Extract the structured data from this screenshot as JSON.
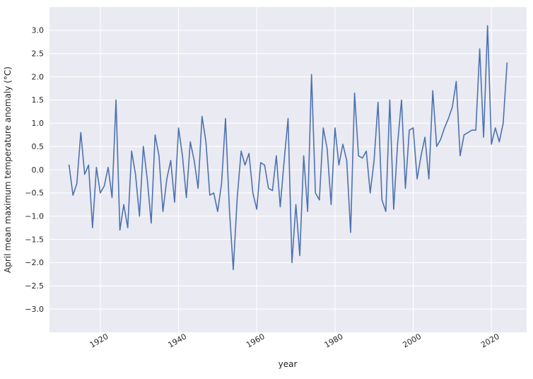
{
  "figure": {
    "background_color": "#ffffff",
    "plot_background_color": "#eaeaf2",
    "grid_color": "#ffffff",
    "line_color": "#4c72b0",
    "tick_label_color": "#262626"
  },
  "chart_data": {
    "type": "line",
    "title": "",
    "xlabel": "year",
    "ylabel": "April mean maximum temperature anomaly (°C)",
    "legend": false,
    "grid": true,
    "x_tick_rotation": 30,
    "xlim": [
      1907,
      2029
    ],
    "ylim": [
      -3.5,
      3.5
    ],
    "xticks": [
      1920,
      1940,
      1960,
      1980,
      2000,
      2020
    ],
    "yticks": [
      -3.0,
      -2.5,
      -2.0,
      -1.5,
      -1.0,
      -0.5,
      0.0,
      0.5,
      1.0,
      1.5,
      2.0,
      2.5,
      3.0
    ],
    "series_name": "April mean maximum temperature anomaly",
    "x": [
      1912,
      1913,
      1914,
      1915,
      1916,
      1917,
      1918,
      1919,
      1920,
      1921,
      1922,
      1923,
      1924,
      1925,
      1926,
      1927,
      1928,
      1929,
      1930,
      1931,
      1932,
      1933,
      1934,
      1935,
      1936,
      1937,
      1938,
      1939,
      1940,
      1941,
      1942,
      1943,
      1944,
      1945,
      1946,
      1947,
      1948,
      1949,
      1950,
      1951,
      1952,
      1953,
      1954,
      1955,
      1956,
      1957,
      1958,
      1959,
      1960,
      1961,
      1962,
      1963,
      1964,
      1965,
      1966,
      1967,
      1968,
      1969,
      1970,
      1971,
      1972,
      1973,
      1974,
      1975,
      1976,
      1977,
      1978,
      1979,
      1980,
      1981,
      1982,
      1983,
      1984,
      1985,
      1986,
      1987,
      1988,
      1989,
      1990,
      1991,
      1992,
      1993,
      1994,
      1995,
      1996,
      1997,
      1998,
      1999,
      2000,
      2001,
      2002,
      2003,
      2004,
      2005,
      2006,
      2007,
      2008,
      2009,
      2010,
      2011,
      2012,
      2013,
      2014,
      2015,
      2016,
      2017,
      2018,
      2019,
      2020,
      2021,
      2022,
      2023,
      2024
    ],
    "values": [
      0.1,
      -0.55,
      -0.3,
      0.8,
      -0.1,
      0.1,
      -1.25,
      0.05,
      -0.5,
      -0.35,
      0.05,
      -0.6,
      1.5,
      -1.3,
      -0.75,
      -1.25,
      0.4,
      -0.1,
      -1.0,
      0.5,
      -0.2,
      -1.15,
      0.75,
      0.3,
      -0.9,
      -0.2,
      0.2,
      -0.7,
      0.9,
      0.3,
      -0.6,
      0.6,
      0.2,
      -0.4,
      1.15,
      0.6,
      -0.55,
      -0.5,
      -0.9,
      -0.3,
      1.1,
      -0.85,
      -2.15,
      -0.6,
      0.4,
      0.1,
      0.35,
      -0.5,
      -0.85,
      0.15,
      0.1,
      -0.4,
      -0.45,
      0.3,
      -0.8,
      0.2,
      1.1,
      -2.0,
      -0.75,
      -1.85,
      0.3,
      -0.9,
      2.05,
      -0.5,
      -0.65,
      0.9,
      0.45,
      -0.75,
      0.9,
      0.1,
      0.55,
      0.2,
      -1.35,
      1.65,
      0.3,
      0.25,
      0.4,
      -0.5,
      0.2,
      1.45,
      -0.65,
      -0.9,
      1.5,
      -0.85,
      0.55,
      1.5,
      -0.4,
      0.85,
      0.9,
      -0.2,
      0.3,
      0.7,
      -0.2,
      1.7,
      0.5,
      0.65,
      0.9,
      1.1,
      1.35,
      1.9,
      0.3,
      0.75,
      0.8,
      0.85,
      0.85,
      2.6,
      0.7,
      3.1,
      0.55,
      0.9,
      0.6,
      1.0,
      2.3
    ]
  }
}
